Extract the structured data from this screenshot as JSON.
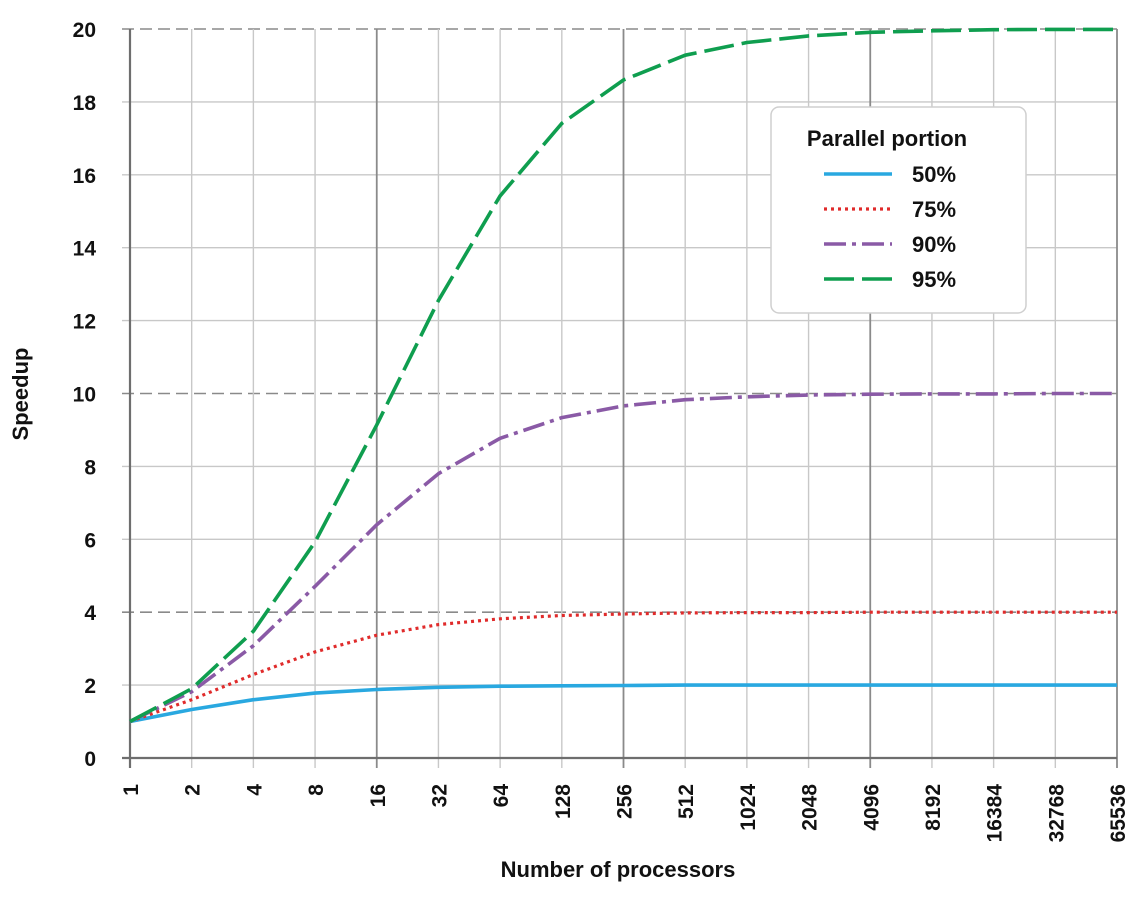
{
  "chart_data": {
    "type": "line",
    "x_scale": "log2",
    "categories": [
      "1",
      "2",
      "4",
      "8",
      "16",
      "32",
      "64",
      "128",
      "256",
      "512",
      "1024",
      "2048",
      "4096",
      "8192",
      "16384",
      "32768",
      "65536"
    ],
    "x": [
      1,
      2,
      4,
      8,
      16,
      32,
      64,
      128,
      256,
      512,
      1024,
      2048,
      4096,
      8192,
      16384,
      32768,
      65536
    ],
    "xlabel": "Number of processors",
    "ylabel": "Speedup",
    "ylim": [
      0,
      20
    ],
    "yticks": [
      0,
      2,
      4,
      6,
      8,
      10,
      12,
      14,
      16,
      18,
      20
    ],
    "grid": true,
    "legend": {
      "title": "Parallel portion",
      "placement": "top-right"
    },
    "series": [
      {
        "name": "50%",
        "color": "#29a8e0",
        "dash": "solid",
        "values": [
          1.0,
          1.33,
          1.6,
          1.78,
          1.88,
          1.94,
          1.97,
          1.98,
          1.99,
          2.0,
          2.0,
          2.0,
          2.0,
          2.0,
          2.0,
          2.0,
          2.0
        ]
      },
      {
        "name": "75%",
        "color": "#e02b2b",
        "dash": "dotted",
        "values": [
          1.0,
          1.6,
          2.29,
          2.91,
          3.37,
          3.66,
          3.82,
          3.91,
          3.95,
          3.98,
          3.99,
          3.99,
          4.0,
          4.0,
          4.0,
          4.0,
          4.0
        ]
      },
      {
        "name": "90%",
        "color": "#8a5aa6",
        "dash": "dashdot",
        "values": [
          1.0,
          1.82,
          3.08,
          4.71,
          6.4,
          7.8,
          8.77,
          9.34,
          9.66,
          9.83,
          9.91,
          9.96,
          9.98,
          9.99,
          9.99,
          10.0,
          10.0
        ]
      },
      {
        "name": "95%",
        "color": "#0f9e4f",
        "dash": "longdash",
        "values": [
          1.0,
          1.9,
          3.48,
          5.93,
          9.14,
          12.55,
          15.42,
          17.41,
          18.6,
          19.28,
          19.63,
          19.81,
          19.91,
          19.95,
          19.98,
          19.99,
          19.99
        ]
      }
    ]
  }
}
